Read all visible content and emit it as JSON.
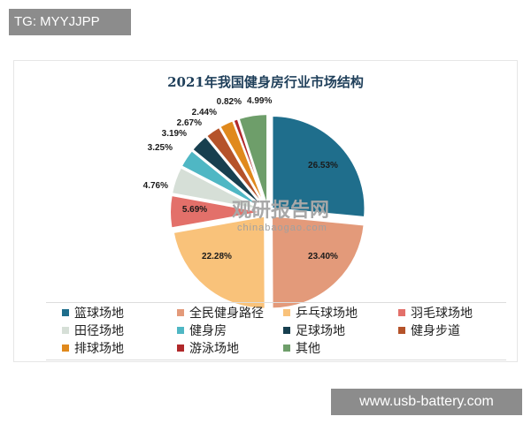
{
  "overlay_tag": "TG: MYYJJPP",
  "site_badge": "www.usb-battery.com",
  "watermark": {
    "cn": "观研报告网",
    "url": "chinabaogao.com"
  },
  "chart_data": {
    "type": "pie",
    "title": "2021年我国健身房行业市场结构",
    "start": "12 o'clock, clockwise",
    "exploded": true,
    "legend_position": "bottom",
    "slices": [
      {
        "label": "篮球场地",
        "value": 26.53,
        "display": "26.53%",
        "color": "#1f6e8c"
      },
      {
        "label": "全民健身路径",
        "value": 23.4,
        "display": "23.40%",
        "color": "#e39a7a"
      },
      {
        "label": "乒乓球场地",
        "value": 22.28,
        "display": "22.28%",
        "color": "#f9c27a"
      },
      {
        "label": "羽毛球场地",
        "value": 5.69,
        "display": "5.69%",
        "color": "#e3706a"
      },
      {
        "label": "田径场地",
        "value": 4.76,
        "display": "4.76%",
        "color": "#d6dfd7"
      },
      {
        "label": "健身房",
        "value": 3.25,
        "display": "3.25%",
        "color": "#4fb7c4"
      },
      {
        "label": "足球场地",
        "value": 3.19,
        "display": "3.19%",
        "color": "#173f4f"
      },
      {
        "label": "健身步道",
        "value": 2.67,
        "display": "2.67%",
        "color": "#b5532a"
      },
      {
        "label": "排球场地",
        "value": 2.44,
        "display": "2.44%",
        "color": "#e0891d"
      },
      {
        "label": "游泳场地",
        "value": 0.82,
        "display": "0.82%",
        "color": "#b0282a"
      },
      {
        "label": "其他",
        "value": 4.99,
        "display": "4.99%",
        "color": "#6e9e6a"
      }
    ]
  }
}
